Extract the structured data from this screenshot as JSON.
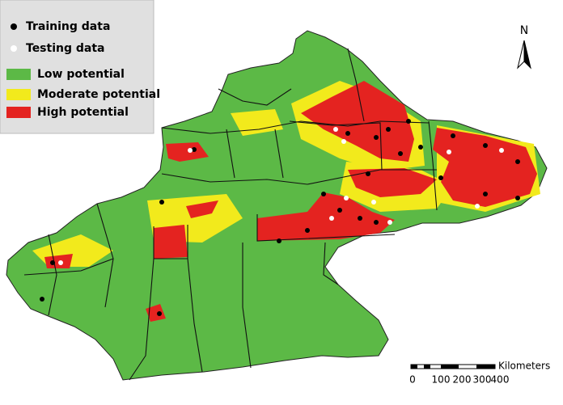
{
  "legend": {
    "items": [
      "Training data",
      "Testing data",
      "Low potential",
      "Moderate potential",
      "High potential"
    ]
  },
  "north_arrow": {
    "label": "N"
  },
  "scale_bar": {
    "unit": "Kilometers",
    "labels": [
      "0",
      "100",
      "200",
      "300",
      "400"
    ]
  }
}
